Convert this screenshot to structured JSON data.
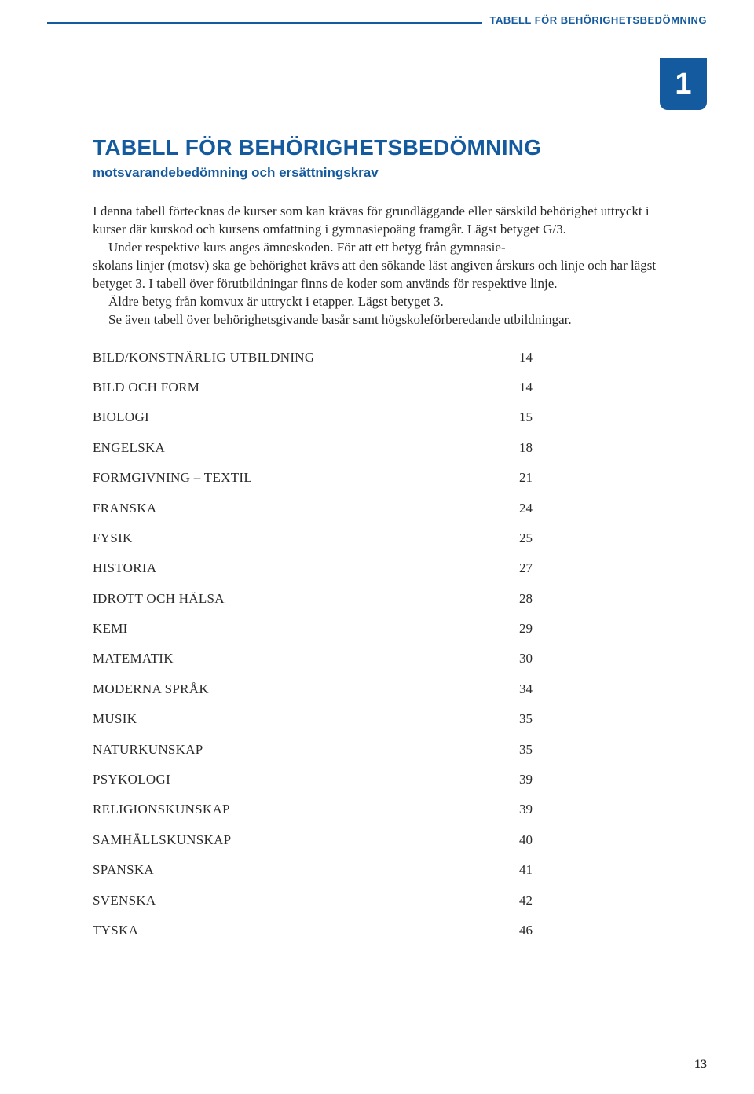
{
  "header": {
    "label": "TABELL FÖR BEHÖRIGHETSBEDÖMNING",
    "tab_number": "1"
  },
  "title": "TABELL FÖR BEHÖRIGHETSBEDÖMNING",
  "subtitle": "motsvarandebedömning och ersättningskrav",
  "body": {
    "p1": "I denna tabell förtecknas de kurser som kan krävas för grundläggande eller särskild behörighet uttryckt i kurser där kurskod och kursens omfattning i gymnasiepoäng framgår. Lägst betyget G/3.",
    "p2a": "Under respektive kurs anges ämneskoden. För att ett betyg från gymnasie-",
    "p2b": "skolans linjer (motsv) ska ge behörighet krävs att den sökande läst angiven årskurs och linje och har lägst betyget 3. I tabell över förutbildningar finns de koder som används för respektive linje.",
    "p3": "Äldre betyg från komvux är uttryckt i etapper. Lägst betyget 3.",
    "p4": "Se även tabell över behörighetsgivande basår samt högskoleförberedande utbildningar."
  },
  "toc": [
    {
      "label": "BILD/KONSTNÄRLIG UTBILDNING",
      "page": "14"
    },
    {
      "label": "BILD OCH FORM",
      "page": "14"
    },
    {
      "label": "BIOLOGI",
      "page": "15"
    },
    {
      "label": "ENGELSKA",
      "page": "18"
    },
    {
      "label": "FORMGIVNING – TEXTIL",
      "page": "21"
    },
    {
      "label": "FRANSKA",
      "page": "24"
    },
    {
      "label": "FYSIK",
      "page": "25"
    },
    {
      "label": "HISTORIA",
      "page": "27"
    },
    {
      "label": "IDROTT OCH HÄLSA",
      "page": "28"
    },
    {
      "label": "KEMI",
      "page": "29"
    },
    {
      "label": "MATEMATIK",
      "page": "30"
    },
    {
      "label": "MODERNA SPRÅK",
      "page": "34"
    },
    {
      "label": "MUSIK",
      "page": "35"
    },
    {
      "label": "NATURKUNSKAP",
      "page": "35"
    },
    {
      "label": "PSYKOLOGI",
      "page": "39"
    },
    {
      "label": "RELIGIONSKUNSKAP",
      "page": "39"
    },
    {
      "label": "SAMHÄLLSKUNSKAP",
      "page": "40"
    },
    {
      "label": "SPANSKA",
      "page": "41"
    },
    {
      "label": "SVENSKA",
      "page": "42"
    },
    {
      "label": "TYSKA",
      "page": "46"
    }
  ],
  "page_number": "13",
  "colors": {
    "brand": "#145a9e",
    "text": "#2a2a2a",
    "background": "#ffffff"
  }
}
